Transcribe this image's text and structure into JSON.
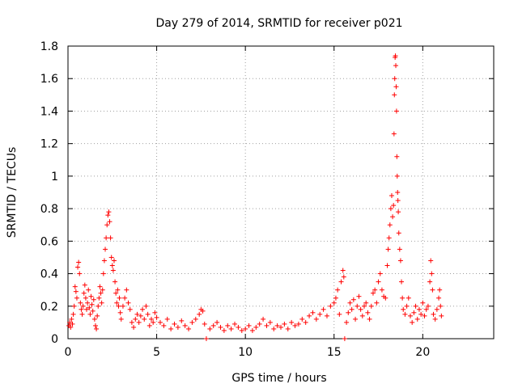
{
  "chart_data": {
    "type": "scatter",
    "title": "Day 279 of 2014, SRMTID for receiver p021",
    "xlabel": "GPS time / hours",
    "ylabel": "SRMTID / TECUs",
    "xlim": [
      0,
      24
    ],
    "ylim": [
      0,
      1.8
    ],
    "xticks": [
      0,
      5,
      10,
      15,
      20
    ],
    "yticks": [
      0,
      0.2,
      0.4,
      0.6,
      0.8,
      1,
      1.2,
      1.4,
      1.6,
      1.8
    ],
    "xtick_labels": [
      "0",
      "5",
      "10",
      "15",
      "20"
    ],
    "ytick_labels": [
      "0",
      "0.2",
      "0.4",
      "0.6",
      "0.8",
      "1",
      "1.2",
      "1.4",
      "1.6",
      "1.8"
    ],
    "grid": true,
    "marker": "+",
    "color": "#ff0000",
    "series": [
      {
        "name": "p021",
        "points": [
          [
            0.05,
            0.08
          ],
          [
            0.1,
            0.1
          ],
          [
            0.15,
            0.07
          ],
          [
            0.2,
            0.12
          ],
          [
            0.25,
            0.09
          ],
          [
            0.3,
            0.15
          ],
          [
            0.35,
            0.2
          ],
          [
            0.4,
            0.32
          ],
          [
            0.45,
            0.29
          ],
          [
            0.5,
            0.25
          ],
          [
            0.55,
            0.44
          ],
          [
            0.6,
            0.47
          ],
          [
            0.65,
            0.4
          ],
          [
            0.7,
            0.22
          ],
          [
            0.75,
            0.18
          ],
          [
            0.8,
            0.15
          ],
          [
            0.85,
            0.2
          ],
          [
            0.9,
            0.28
          ],
          [
            0.95,
            0.33
          ],
          [
            1.0,
            0.25
          ],
          [
            1.05,
            0.18
          ],
          [
            1.1,
            0.22
          ],
          [
            1.15,
            0.3
          ],
          [
            1.2,
            0.19
          ],
          [
            1.25,
            0.15
          ],
          [
            1.3,
            0.26
          ],
          [
            1.35,
            0.21
          ],
          [
            1.4,
            0.17
          ],
          [
            1.45,
            0.24
          ],
          [
            1.5,
            0.12
          ],
          [
            1.55,
            0.08
          ],
          [
            1.6,
            0.06
          ],
          [
            1.65,
            0.14
          ],
          [
            1.7,
            0.2
          ],
          [
            1.75,
            0.25
          ],
          [
            1.8,
            0.32
          ],
          [
            1.85,
            0.28
          ],
          [
            1.9,
            0.22
          ],
          [
            1.95,
            0.3
          ],
          [
            2.0,
            0.4
          ],
          [
            2.05,
            0.48
          ],
          [
            2.1,
            0.55
          ],
          [
            2.15,
            0.62
          ],
          [
            2.2,
            0.7
          ],
          [
            2.25,
            0.76
          ],
          [
            2.3,
            0.78
          ],
          [
            2.35,
            0.72
          ],
          [
            2.4,
            0.62
          ],
          [
            2.45,
            0.5
          ],
          [
            2.5,
            0.45
          ],
          [
            2.55,
            0.42
          ],
          [
            2.6,
            0.48
          ],
          [
            2.65,
            0.35
          ],
          [
            2.7,
            0.28
          ],
          [
            2.75,
            0.22
          ],
          [
            2.8,
            0.3
          ],
          [
            2.85,
            0.2
          ],
          [
            2.9,
            0.25
          ],
          [
            2.95,
            0.16
          ],
          [
            3.0,
            0.12
          ],
          [
            3.1,
            0.2
          ],
          [
            3.2,
            0.25
          ],
          [
            3.3,
            0.3
          ],
          [
            3.4,
            0.22
          ],
          [
            3.5,
            0.18
          ],
          [
            3.6,
            0.1
          ],
          [
            3.7,
            0.07
          ],
          [
            3.8,
            0.12
          ],
          [
            3.9,
            0.15
          ],
          [
            4.0,
            0.1
          ],
          [
            4.1,
            0.14
          ],
          [
            4.2,
            0.18
          ],
          [
            4.3,
            0.12
          ],
          [
            4.4,
            0.2
          ],
          [
            4.5,
            0.15
          ],
          [
            4.6,
            0.08
          ],
          [
            4.7,
            0.12
          ],
          [
            4.8,
            0.1
          ],
          [
            4.9,
            0.16
          ],
          [
            5.0,
            0.13
          ],
          [
            5.2,
            0.1
          ],
          [
            5.4,
            0.08
          ],
          [
            5.6,
            0.12
          ],
          [
            5.8,
            0.06
          ],
          [
            6.0,
            0.09
          ],
          [
            6.2,
            0.07
          ],
          [
            6.4,
            0.11
          ],
          [
            6.6,
            0.08
          ],
          [
            6.8,
            0.06
          ],
          [
            7.0,
            0.1
          ],
          [
            7.2,
            0.12
          ],
          [
            7.4,
            0.15
          ],
          [
            7.5,
            0.18
          ],
          [
            7.6,
            0.17
          ],
          [
            7.7,
            0.09
          ],
          [
            7.8,
            0.0
          ],
          [
            8.0,
            0.06
          ],
          [
            8.2,
            0.08
          ],
          [
            8.4,
            0.1
          ],
          [
            8.6,
            0.07
          ],
          [
            8.8,
            0.05
          ],
          [
            9.0,
            0.08
          ],
          [
            9.2,
            0.06
          ],
          [
            9.4,
            0.09
          ],
          [
            9.6,
            0.07
          ],
          [
            9.8,
            0.05
          ],
          [
            10.0,
            0.06
          ],
          [
            10.2,
            0.08
          ],
          [
            10.4,
            0.05
          ],
          [
            10.6,
            0.07
          ],
          [
            10.8,
            0.09
          ],
          [
            11.0,
            0.12
          ],
          [
            11.2,
            0.08
          ],
          [
            11.4,
            0.1
          ],
          [
            11.6,
            0.06
          ],
          [
            11.8,
            0.08
          ],
          [
            12.0,
            0.07
          ],
          [
            12.2,
            0.09
          ],
          [
            12.4,
            0.06
          ],
          [
            12.6,
            0.1
          ],
          [
            12.8,
            0.08
          ],
          [
            13.0,
            0.09
          ],
          [
            13.2,
            0.12
          ],
          [
            13.4,
            0.1
          ],
          [
            13.6,
            0.14
          ],
          [
            13.8,
            0.16
          ],
          [
            14.0,
            0.12
          ],
          [
            14.2,
            0.15
          ],
          [
            14.4,
            0.18
          ],
          [
            14.6,
            0.14
          ],
          [
            14.8,
            0.2
          ],
          [
            15.0,
            0.22
          ],
          [
            15.1,
            0.25
          ],
          [
            15.2,
            0.3
          ],
          [
            15.3,
            0.15
          ],
          [
            15.4,
            0.35
          ],
          [
            15.5,
            0.42
          ],
          [
            15.55,
            0.38
          ],
          [
            15.6,
            0.0
          ],
          [
            15.7,
            0.1
          ],
          [
            15.8,
            0.16
          ],
          [
            15.9,
            0.22
          ],
          [
            16.0,
            0.18
          ],
          [
            16.1,
            0.24
          ],
          [
            16.2,
            0.12
          ],
          [
            16.3,
            0.2
          ],
          [
            16.4,
            0.26
          ],
          [
            16.5,
            0.18
          ],
          [
            16.6,
            0.14
          ],
          [
            16.7,
            0.2
          ],
          [
            16.8,
            0.22
          ],
          [
            16.9,
            0.16
          ],
          [
            17.0,
            0.12
          ],
          [
            17.1,
            0.2
          ],
          [
            17.2,
            0.28
          ],
          [
            17.3,
            0.3
          ],
          [
            17.4,
            0.22
          ],
          [
            17.5,
            0.35
          ],
          [
            17.6,
            0.4
          ],
          [
            17.7,
            0.3
          ],
          [
            17.8,
            0.26
          ],
          [
            17.9,
            0.25
          ],
          [
            18.0,
            0.45
          ],
          [
            18.05,
            0.55
          ],
          [
            18.1,
            0.62
          ],
          [
            18.15,
            0.7
          ],
          [
            18.2,
            0.8
          ],
          [
            18.25,
            0.88
          ],
          [
            18.3,
            0.75
          ],
          [
            18.35,
            0.82
          ],
          [
            18.38,
            1.26
          ],
          [
            18.4,
            1.5
          ],
          [
            18.42,
            1.6
          ],
          [
            18.44,
            1.73
          ],
          [
            18.46,
            1.74
          ],
          [
            18.48,
            1.68
          ],
          [
            18.5,
            1.55
          ],
          [
            18.52,
            1.4
          ],
          [
            18.54,
            1.12
          ],
          [
            18.56,
            1.0
          ],
          [
            18.58,
            0.9
          ],
          [
            18.6,
            0.85
          ],
          [
            18.62,
            0.78
          ],
          [
            18.65,
            0.65
          ],
          [
            18.7,
            0.55
          ],
          [
            18.75,
            0.48
          ],
          [
            18.8,
            0.35
          ],
          [
            18.85,
            0.25
          ],
          [
            18.9,
            0.18
          ],
          [
            19.0,
            0.15
          ],
          [
            19.1,
            0.2
          ],
          [
            19.2,
            0.25
          ],
          [
            19.3,
            0.14
          ],
          [
            19.4,
            0.1
          ],
          [
            19.5,
            0.16
          ],
          [
            19.6,
            0.2
          ],
          [
            19.7,
            0.12
          ],
          [
            19.8,
            0.18
          ],
          [
            19.9,
            0.15
          ],
          [
            20.0,
            0.22
          ],
          [
            20.1,
            0.14
          ],
          [
            20.2,
            0.18
          ],
          [
            20.3,
            0.2
          ],
          [
            20.4,
            0.35
          ],
          [
            20.45,
            0.48
          ],
          [
            20.5,
            0.4
          ],
          [
            20.55,
            0.3
          ],
          [
            20.6,
            0.15
          ],
          [
            20.7,
            0.12
          ],
          [
            20.8,
            0.18
          ],
          [
            20.9,
            0.25
          ],
          [
            20.95,
            0.3
          ],
          [
            21.0,
            0.2
          ],
          [
            21.05,
            0.14
          ]
        ]
      }
    ]
  }
}
